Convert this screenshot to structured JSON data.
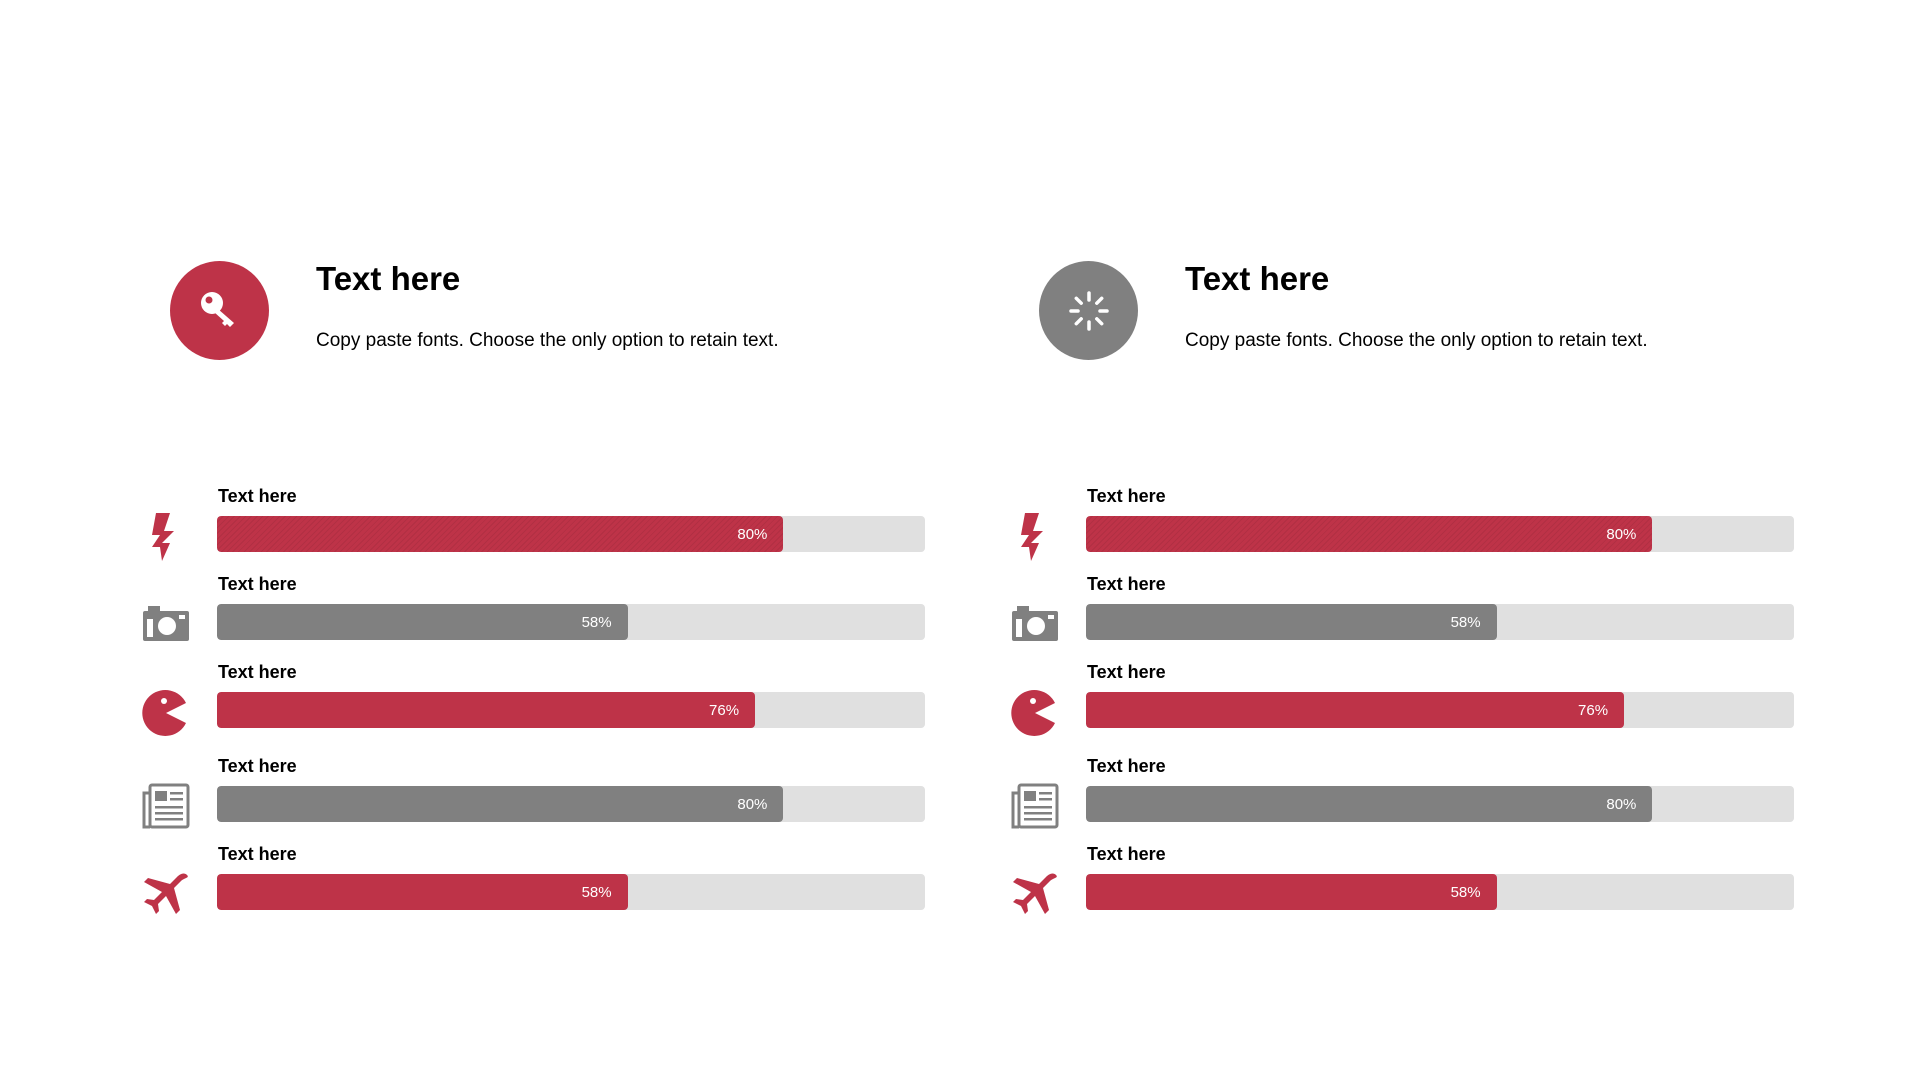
{
  "colors": {
    "accent": "#be3348",
    "neutral": "#808080",
    "track": "#e0e0e0"
  },
  "columns": [
    {
      "header": {
        "icon": "key-icon",
        "circle_color": "#be3348",
        "title": "Text here",
        "description": "Copy paste fonts. Choose the only option to retain text."
      },
      "bars": [
        {
          "icon": "lightning-icon",
          "label": "Text here",
          "percent": 80,
          "percent_label": "80%",
          "color": "#be3348",
          "striped": true
        },
        {
          "icon": "camera-icon",
          "label": "Text here",
          "percent": 58,
          "percent_label": "58%",
          "color": "#808080",
          "striped": false
        },
        {
          "icon": "pacman-icon",
          "label": "Text here",
          "percent": 76,
          "percent_label": "76%",
          "color": "#be3348",
          "striped": false
        },
        {
          "icon": "newspaper-icon",
          "label": "Text here",
          "percent": 80,
          "percent_label": "80%",
          "color": "#808080",
          "striped": false
        },
        {
          "icon": "airplane-icon",
          "label": "Text here",
          "percent": 58,
          "percent_label": "58%",
          "color": "#be3348",
          "striped": false
        }
      ]
    },
    {
      "header": {
        "icon": "loading-spinner-icon",
        "circle_color": "#808080",
        "title": "Text here",
        "description": "Copy paste fonts. Choose the only option to retain text."
      },
      "bars": [
        {
          "icon": "lightning-icon",
          "label": "Text here",
          "percent": 80,
          "percent_label": "80%",
          "color": "#be3348",
          "striped": true
        },
        {
          "icon": "camera-icon",
          "label": "Text here",
          "percent": 58,
          "percent_label": "58%",
          "color": "#808080",
          "striped": false
        },
        {
          "icon": "pacman-icon",
          "label": "Text here",
          "percent": 76,
          "percent_label": "76%",
          "color": "#be3348",
          "striped": false
        },
        {
          "icon": "newspaper-icon",
          "label": "Text here",
          "percent": 80,
          "percent_label": "80%",
          "color": "#808080",
          "striped": false
        },
        {
          "icon": "airplane-icon",
          "label": "Text here",
          "percent": 58,
          "percent_label": "58%",
          "color": "#be3348",
          "striped": false
        }
      ]
    }
  ]
}
